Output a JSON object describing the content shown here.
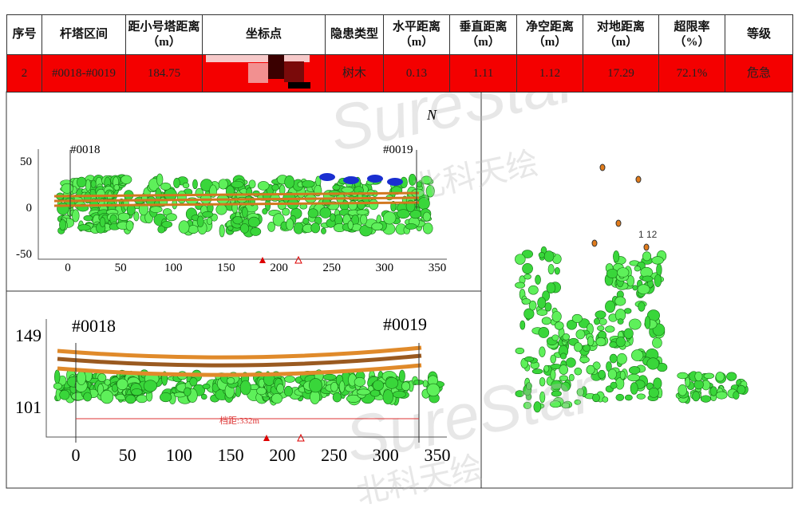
{
  "table": {
    "headers": [
      "序号",
      "杆塔区间",
      "距小号塔距离（m）",
      "坐标点",
      "隐患类型",
      "水平距离（m）",
      "垂直距离（m）",
      "净空距离（m）",
      "对地距离（m）",
      "超限率（%）",
      "等级"
    ],
    "row": {
      "index": "2",
      "span": "#0018-#0019",
      "distance": "184.75",
      "type": "树木",
      "horizontal": "0.13",
      "vertical": "1.11",
      "clearance": "1.12",
      "ground": "17.29",
      "rate": "72.1%",
      "level": "危急"
    }
  },
  "top_view": {
    "tower_start": "#0018",
    "tower_end": "#0019",
    "north": "N",
    "xticks": [
      0,
      50,
      100,
      150,
      200,
      250,
      300,
      350
    ],
    "yticks": [
      50,
      0,
      -50
    ]
  },
  "side_view": {
    "tower_start": "#0018",
    "tower_end": "#0019",
    "span_label": "档距:332m",
    "xticks": [
      0,
      50,
      100,
      150,
      200,
      250,
      300,
      350
    ],
    "yticks": [
      149,
      101
    ]
  },
  "section_view": {
    "clearance_label": "1 12"
  },
  "watermark": {
    "brand": "SureStar",
    "name": "北科天绘"
  }
}
